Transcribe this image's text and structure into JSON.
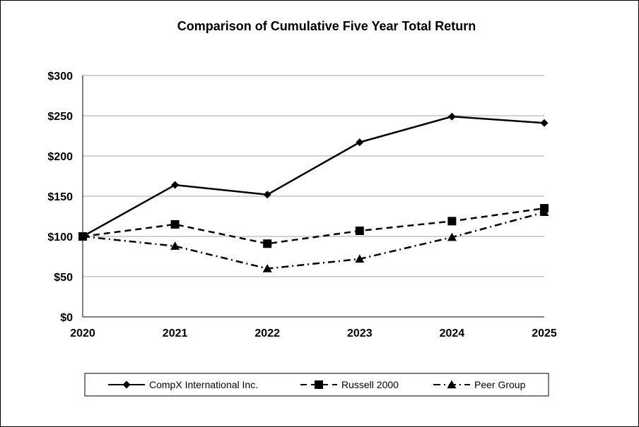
{
  "chart_data": {
    "type": "line",
    "title": "Comparison of Cumulative Five Year Total Return",
    "xlabel": "",
    "ylabel": "",
    "categories": [
      "2020",
      "2021",
      "2022",
      "2023",
      "2024",
      "2025"
    ],
    "ylim": [
      0,
      300
    ],
    "yticks": [
      0,
      50,
      100,
      150,
      200,
      250,
      300
    ],
    "ytick_labels": [
      "$0",
      "$50",
      "$100",
      "$150",
      "$200",
      "$250",
      "$300"
    ],
    "grid": true,
    "legend_position": "bottom",
    "series": [
      {
        "name": "CompX International Inc.",
        "values": [
          100,
          164,
          152,
          217,
          249,
          241
        ],
        "marker": "diamond",
        "dash": "solid",
        "color": "#000000"
      },
      {
        "name": "Russell 2000",
        "values": [
          100,
          115,
          91,
          107,
          119,
          135
        ],
        "marker": "square",
        "dash": "dashed",
        "color": "#000000"
      },
      {
        "name": "Peer Group",
        "values": [
          100,
          88,
          60,
          72,
          99,
          130
        ],
        "marker": "triangle",
        "dash": "dashdot",
        "color": "#000000"
      }
    ]
  }
}
